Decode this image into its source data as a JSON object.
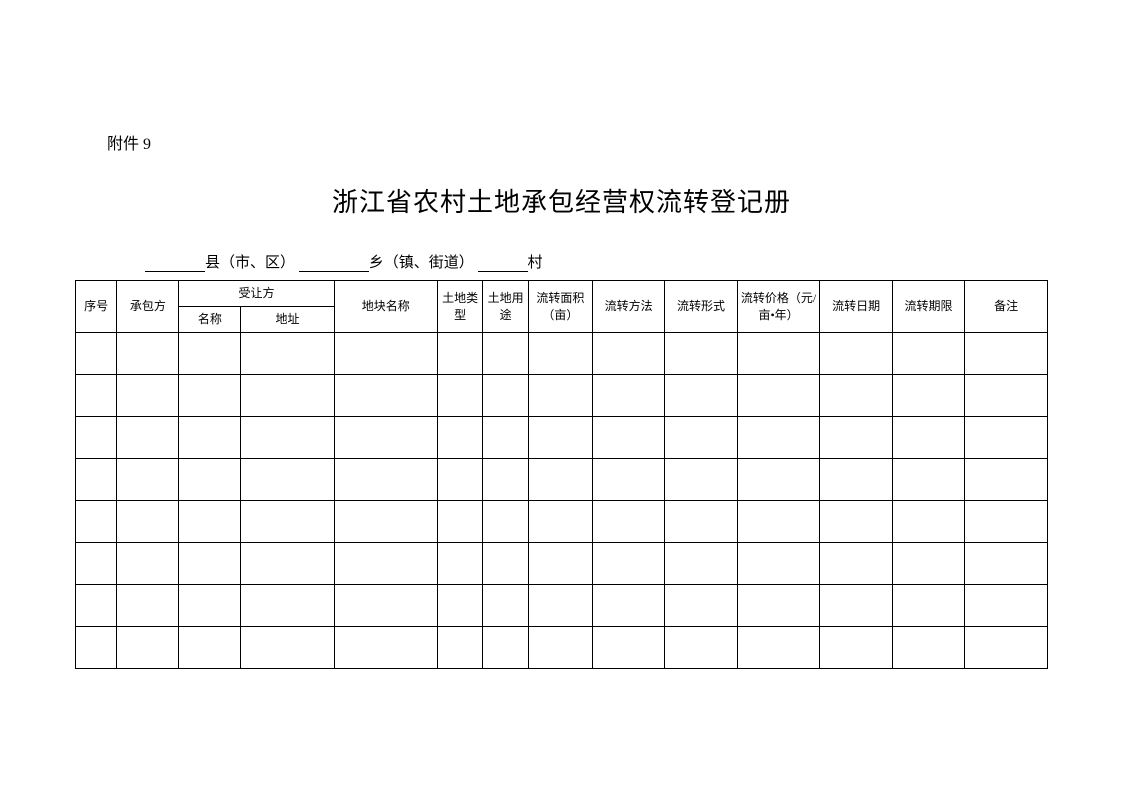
{
  "attachment_label": "附件 9",
  "title": "浙江省农村土地承包经营权流转登记册",
  "location": {
    "county_suffix": "县（市、区）",
    "township_suffix": "乡（镇、街道）",
    "village_suffix": "村"
  },
  "table": {
    "headers": {
      "seq": "序号",
      "contractor": "承包方",
      "transferee": "受让方",
      "transferee_name": "名称",
      "transferee_addr": "地址",
      "plot_name": "地块名称",
      "land_type": "土地类型",
      "land_use": "土地用途",
      "transfer_area": "流转面积（亩）",
      "transfer_method": "流转方法",
      "transfer_form": "流转形式",
      "transfer_price": "流转价格（元/亩•年）",
      "transfer_date": "流转日期",
      "transfer_period": "流转期限",
      "remark": "备注"
    },
    "empty_rows": 8
  }
}
